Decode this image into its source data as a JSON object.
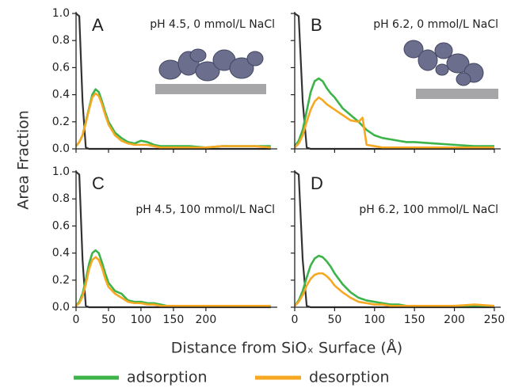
{
  "figure": {
    "xlabel": "Distance from SiOₓ Surface (Å)",
    "ylabel": "Area Fraction"
  },
  "chart_data": [
    {
      "type": "line",
      "panel_label": "A",
      "annotation": "pH 4.5, 0 mmol/L NaCl",
      "x": [
        0,
        5,
        10,
        15,
        20,
        25,
        30,
        35,
        40,
        45,
        50,
        60,
        70,
        80,
        90,
        100,
        110,
        120,
        130,
        140,
        150,
        175,
        200,
        225,
        250,
        275,
        300
      ],
      "series": [
        {
          "color": "#333333",
          "values": [
            1,
            0.98,
            0.35,
            0.01,
            0,
            0,
            0,
            0,
            0,
            0,
            0,
            0,
            0,
            0,
            0,
            0,
            0,
            0,
            0,
            0,
            0,
            0,
            0,
            0,
            0,
            0,
            0
          ]
        },
        {
          "name": "adsorption",
          "color": "#3cb44a",
          "values": [
            0.02,
            0.05,
            0.1,
            0.2,
            0.3,
            0.4,
            0.44,
            0.42,
            0.35,
            0.27,
            0.2,
            0.12,
            0.08,
            0.05,
            0.04,
            0.06,
            0.05,
            0.03,
            0.02,
            0.02,
            0.02,
            0.02,
            0.01,
            0.02,
            0.02,
            0.02,
            0.02
          ]
        },
        {
          "name": "desorption",
          "color": "#f7a823",
          "values": [
            0.02,
            0.05,
            0.1,
            0.19,
            0.29,
            0.38,
            0.41,
            0.39,
            0.33,
            0.25,
            0.18,
            0.1,
            0.06,
            0.04,
            0.03,
            0.03,
            0.03,
            0.02,
            0.01,
            0.01,
            0.01,
            0.01,
            0.01,
            0.02,
            0.02,
            0.02,
            0.01
          ]
        }
      ],
      "xlim": [
        0,
        310
      ],
      "ylim": [
        0,
        1
      ],
      "xticks": [
        0,
        50,
        100,
        150,
        200
      ],
      "show_xtick_labels": false,
      "yticks": [
        {
          "value": 0,
          "label": "0.0"
        },
        {
          "value": 0.2,
          "label": "0.2"
        },
        {
          "value": 0.4,
          "label": "0.4"
        },
        {
          "value": 0.6,
          "label": "0.6"
        },
        {
          "value": 0.8,
          "label": "0.8"
        },
        {
          "value": 1,
          "label": "1.0"
        }
      ]
    },
    {
      "type": "line",
      "panel_label": "B",
      "annotation": "pH 6.2, 0 mmol/L NaCl",
      "x": [
        0,
        5,
        10,
        15,
        20,
        25,
        30,
        35,
        40,
        45,
        50,
        60,
        70,
        80,
        85,
        90,
        100,
        110,
        120,
        130,
        140,
        150,
        175,
        200,
        225,
        250
      ],
      "series": [
        {
          "color": "#333333",
          "values": [
            1,
            0.98,
            0.35,
            0.01,
            0,
            0,
            0,
            0,
            0,
            0,
            0,
            0,
            0,
            0,
            0,
            0,
            0,
            0,
            0,
            0,
            0,
            0,
            0,
            0,
            0,
            0
          ]
        },
        {
          "color": "#3cb44a",
          "values": [
            0.02,
            0.06,
            0.14,
            0.28,
            0.42,
            0.5,
            0.52,
            0.5,
            0.45,
            0.41,
            0.38,
            0.3,
            0.25,
            0.2,
            0.17,
            0.14,
            0.1,
            0.08,
            0.07,
            0.06,
            0.05,
            0.05,
            0.04,
            0.03,
            0.02,
            0.02
          ]
        },
        {
          "color": "#f7a823",
          "values": [
            0.01,
            0.04,
            0.1,
            0.2,
            0.29,
            0.35,
            0.38,
            0.36,
            0.33,
            0.31,
            0.29,
            0.25,
            0.21,
            0.2,
            0.23,
            0.03,
            0.02,
            0.01,
            0.01,
            0.01,
            0.01,
            0.01,
            0.01,
            0.01,
            0.01,
            0.01
          ]
        }
      ],
      "xlim": [
        0,
        258
      ],
      "ylim": [
        0,
        1
      ],
      "xticks": [
        0,
        50,
        100,
        150,
        200,
        250
      ],
      "show_xtick_labels": false,
      "yticks": [
        0,
        0.2,
        0.4,
        0.6,
        0.8,
        1
      ],
      "show_ytick_labels": false
    },
    {
      "type": "line",
      "panel_label": "C",
      "annotation": "pH 4.5, 100 mmol/L NaCl",
      "x": [
        0,
        5,
        10,
        15,
        20,
        25,
        30,
        35,
        40,
        45,
        50,
        60,
        70,
        80,
        90,
        100,
        110,
        120,
        130,
        140,
        150,
        175,
        200,
        225,
        250,
        275,
        300
      ],
      "series": [
        {
          "color": "#333333",
          "values": [
            1,
            0.98,
            0.35,
            0.01,
            0,
            0,
            0,
            0,
            0,
            0,
            0,
            0,
            0,
            0,
            0,
            0,
            0,
            0,
            0,
            0,
            0,
            0,
            0,
            0,
            0,
            0,
            0
          ]
        },
        {
          "color": "#3cb44a",
          "values": [
            0.01,
            0.04,
            0.1,
            0.2,
            0.32,
            0.4,
            0.42,
            0.4,
            0.33,
            0.25,
            0.18,
            0.12,
            0.1,
            0.05,
            0.04,
            0.04,
            0.03,
            0.03,
            0.02,
            0.01,
            0.01,
            0.01,
            0.01,
            0.01,
            0.01,
            0.01,
            0.01
          ]
        },
        {
          "color": "#f7a823",
          "values": [
            0.01,
            0.03,
            0.08,
            0.17,
            0.28,
            0.35,
            0.37,
            0.35,
            0.29,
            0.21,
            0.15,
            0.1,
            0.07,
            0.04,
            0.03,
            0.03,
            0.02,
            0.02,
            0.01,
            0.01,
            0.01,
            0.01,
            0.01,
            0.01,
            0.01,
            0.01,
            0.01
          ]
        }
      ],
      "xlim": [
        0,
        310
      ],
      "ylim": [
        0,
        1
      ],
      "xticks": [
        0,
        50,
        100,
        150,
        200
      ],
      "show_xtick_labels": true,
      "yticks": [
        {
          "value": 0,
          "label": "0.0"
        },
        {
          "value": 0.2,
          "label": "0.2"
        },
        {
          "value": 0.4,
          "label": "0.4"
        },
        {
          "value": 0.6,
          "label": "0.6"
        },
        {
          "value": 0.8,
          "label": "0.8"
        },
        {
          "value": 1,
          "label": "1.0"
        }
      ]
    },
    {
      "type": "line",
      "panel_label": "D",
      "annotation": "pH 6.2, 100 mmol/L NaCl",
      "x": [
        0,
        5,
        10,
        15,
        20,
        25,
        30,
        35,
        40,
        45,
        50,
        60,
        70,
        80,
        90,
        100,
        110,
        120,
        130,
        140,
        150,
        175,
        200,
        225,
        250
      ],
      "series": [
        {
          "color": "#333333",
          "values": [
            1,
            0.98,
            0.35,
            0.01,
            0,
            0,
            0,
            0,
            0,
            0,
            0,
            0,
            0,
            0,
            0,
            0,
            0,
            0,
            0,
            0,
            0,
            0,
            0,
            0,
            0
          ]
        },
        {
          "color": "#3cb44a",
          "values": [
            0.01,
            0.05,
            0.12,
            0.22,
            0.31,
            0.36,
            0.38,
            0.37,
            0.34,
            0.3,
            0.25,
            0.17,
            0.11,
            0.07,
            0.05,
            0.04,
            0.03,
            0.02,
            0.02,
            0.01,
            0.01,
            0.01,
            0.01,
            0.01,
            0.01
          ]
        },
        {
          "color": "#f7a823",
          "values": [
            0.01,
            0.04,
            0.09,
            0.16,
            0.21,
            0.24,
            0.25,
            0.25,
            0.23,
            0.2,
            0.16,
            0.11,
            0.07,
            0.04,
            0.03,
            0.02,
            0.02,
            0.01,
            0.01,
            0.01,
            0.01,
            0.01,
            0.01,
            0.02,
            0.01
          ]
        }
      ],
      "xlim": [
        0,
        258
      ],
      "ylim": [
        0,
        1
      ],
      "xticks": [
        0,
        50,
        100,
        150,
        200,
        250
      ],
      "show_xtick_labels": true,
      "yticks": [
        0,
        0.2,
        0.4,
        0.6,
        0.8,
        1
      ],
      "show_ytick_labels": false
    }
  ]
}
